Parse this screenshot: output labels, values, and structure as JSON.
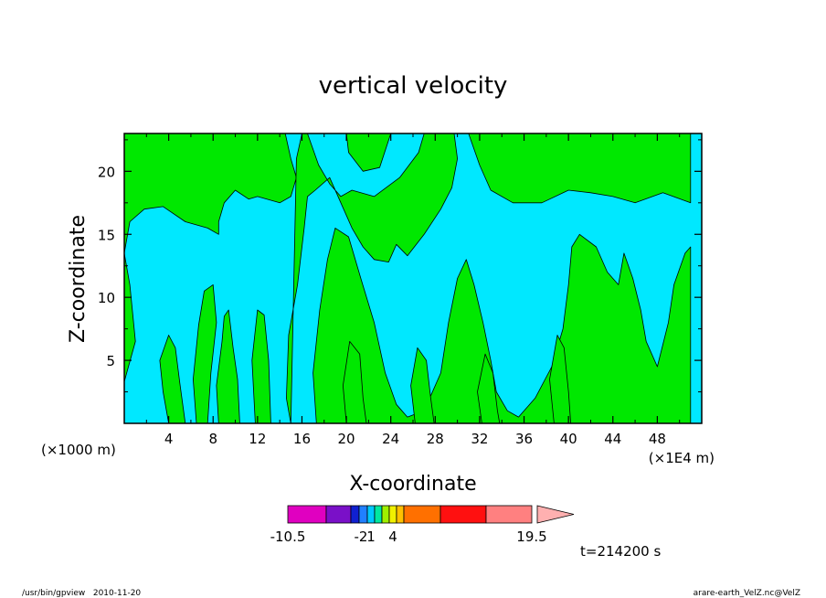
{
  "chart_data": {
    "type": "heatmap",
    "title": "vertical velocity",
    "xlabel": "X-coordinate",
    "ylabel": "Z-coordinate",
    "x_unit": "(×1000 m)",
    "x_scale_note": "(×1E4 m)",
    "xlim": [
      0,
      52
    ],
    "ylim": [
      0,
      23
    ],
    "x_ticks": [
      4,
      8,
      12,
      16,
      20,
      24,
      28,
      32,
      36,
      40,
      44,
      48
    ],
    "y_ticks": [
      5,
      10,
      15,
      20
    ],
    "x_tick_labels": [
      "4",
      "8",
      "12",
      "16",
      "20",
      "24",
      "28",
      "32",
      "36",
      "40",
      "44",
      "48"
    ],
    "y_tick_labels": [
      "5",
      "10",
      "15",
      "20"
    ],
    "background_color": "#00e8ff",
    "positive_color": "#00e800",
    "regions": [
      {
        "polygon": [
          [
            0,
            0
          ],
          [
            0,
            3.3
          ],
          [
            1,
            6.5
          ],
          [
            0.5,
            11
          ],
          [
            0,
            13.5
          ],
          [
            0.5,
            16
          ],
          [
            1.8,
            17
          ],
          [
            3.5,
            17.2
          ],
          [
            5.5,
            16
          ],
          [
            7.5,
            15.5
          ],
          [
            8.5,
            15
          ],
          [
            8.5,
            16
          ],
          [
            9,
            17.5
          ],
          [
            10,
            18.5
          ],
          [
            11.2,
            17.8
          ],
          [
            12,
            18
          ],
          [
            14,
            17.5
          ],
          [
            15,
            18
          ],
          [
            15.5,
            19.5
          ],
          [
            15,
            21
          ],
          [
            14.5,
            23
          ],
          [
            0,
            23
          ]
        ]
      },
      {
        "polygon": [
          [
            4,
            0
          ],
          [
            3.5,
            2.5
          ],
          [
            3.2,
            5
          ],
          [
            4,
            7
          ],
          [
            4.6,
            6
          ],
          [
            5,
            3.2
          ],
          [
            5.5,
            0
          ]
        ]
      },
      {
        "polygon": [
          [
            6.5,
            0
          ],
          [
            6.2,
            3.5
          ],
          [
            6.7,
            7.8
          ],
          [
            7.2,
            10.5
          ],
          [
            8,
            11
          ],
          [
            8.3,
            8
          ],
          [
            7.8,
            4
          ],
          [
            7.5,
            0
          ]
        ]
      },
      {
        "polygon": [
          [
            8.5,
            0
          ],
          [
            8.3,
            3
          ],
          [
            8.8,
            6.5
          ],
          [
            9,
            8.5
          ],
          [
            9.4,
            9
          ],
          [
            9.8,
            6
          ],
          [
            10.2,
            3.5
          ],
          [
            10.4,
            0
          ]
        ]
      },
      {
        "polygon": [
          [
            11.8,
            0
          ],
          [
            11.5,
            5
          ],
          [
            12,
            9
          ],
          [
            12.6,
            8.6
          ],
          [
            13,
            5
          ],
          [
            13.2,
            0
          ]
        ]
      },
      {
        "polygon": [
          [
            15,
            0
          ],
          [
            14.6,
            2
          ],
          [
            14.8,
            7
          ],
          [
            15.6,
            11
          ],
          [
            16.2,
            15.5
          ],
          [
            16.5,
            18
          ],
          [
            17.2,
            18.5
          ],
          [
            18.5,
            19.5
          ],
          [
            19.5,
            17.5
          ],
          [
            20.5,
            15.5
          ],
          [
            21.5,
            14
          ],
          [
            22.5,
            13
          ],
          [
            23.8,
            12.8
          ],
          [
            24.5,
            14.2
          ],
          [
            25.5,
            13.3
          ],
          [
            27,
            15
          ],
          [
            28.5,
            17
          ],
          [
            29.5,
            18.7
          ],
          [
            30,
            21
          ],
          [
            29.7,
            23
          ],
          [
            51,
            23
          ],
          [
            51,
            17.5
          ],
          [
            48.5,
            18.3
          ],
          [
            46,
            17.5
          ],
          [
            44,
            18
          ],
          [
            42,
            18.3
          ],
          [
            40,
            18.5
          ],
          [
            37.6,
            17.5
          ],
          [
            35,
            17.5
          ],
          [
            33,
            18.5
          ],
          [
            32,
            20.5
          ],
          [
            31,
            23
          ],
          [
            27,
            23
          ],
          [
            26.5,
            21.5
          ],
          [
            24.8,
            19.5
          ],
          [
            22.5,
            18
          ],
          [
            20.5,
            18.5
          ],
          [
            19.5,
            18
          ],
          [
            18.5,
            19
          ],
          [
            17.5,
            20.5
          ],
          [
            16.5,
            23
          ],
          [
            20,
            23
          ],
          [
            20.2,
            21.5
          ],
          [
            21.5,
            20
          ],
          [
            23,
            20.3
          ],
          [
            24,
            23
          ],
          [
            16,
            23
          ],
          [
            15.5,
            21
          ]
        ]
      },
      {
        "polygon": [
          [
            17.3,
            0
          ],
          [
            17,
            4
          ],
          [
            17.6,
            9
          ],
          [
            18.3,
            13
          ],
          [
            19,
            15.5
          ],
          [
            20.2,
            14.8
          ],
          [
            21.3,
            11.5
          ],
          [
            22.5,
            8
          ],
          [
            23.5,
            4
          ],
          [
            24.5,
            1.5
          ],
          [
            25.5,
            0.5
          ],
          [
            27,
            1
          ],
          [
            28.5,
            4
          ],
          [
            29.2,
            8
          ],
          [
            30,
            11.5
          ],
          [
            30.8,
            13
          ],
          [
            31.5,
            11
          ],
          [
            32.3,
            8
          ],
          [
            33,
            5
          ],
          [
            33.5,
            2.5
          ],
          [
            34.5,
            1
          ],
          [
            35.5,
            0.5
          ],
          [
            37,
            2
          ],
          [
            38.5,
            4.5
          ],
          [
            39.5,
            7.5
          ],
          [
            40,
            11
          ],
          [
            40.3,
            14
          ],
          [
            41,
            15
          ],
          [
            42.5,
            14
          ],
          [
            43.5,
            12
          ],
          [
            44.5,
            11
          ],
          [
            45,
            13.5
          ],
          [
            45.8,
            11.5
          ],
          [
            46.5,
            9
          ],
          [
            47,
            6.5
          ],
          [
            48,
            4.5
          ],
          [
            49,
            8
          ],
          [
            49.5,
            11
          ],
          [
            50.5,
            13.5
          ],
          [
            51,
            14
          ],
          [
            51,
            0
          ]
        ]
      },
      {
        "polygon": [
          [
            20,
            0
          ],
          [
            19.7,
            3
          ],
          [
            20.3,
            6.5
          ],
          [
            21.2,
            5.5
          ],
          [
            21.5,
            2
          ],
          [
            21.8,
            0
          ]
        ]
      },
      {
        "polygon": [
          [
            26.2,
            0
          ],
          [
            25.8,
            3
          ],
          [
            26.4,
            6
          ],
          [
            27.2,
            5
          ],
          [
            27.6,
            2
          ],
          [
            27.9,
            0
          ]
        ]
      },
      {
        "polygon": [
          [
            32.2,
            0
          ],
          [
            31.8,
            2.5
          ],
          [
            32.5,
            5.5
          ],
          [
            33.2,
            4
          ],
          [
            33.6,
            1
          ],
          [
            33.8,
            0
          ]
        ]
      },
      {
        "polygon": [
          [
            38.7,
            0
          ],
          [
            38.3,
            3.5
          ],
          [
            39,
            7
          ],
          [
            39.6,
            6
          ],
          [
            40,
            2.5
          ],
          [
            40.2,
            0
          ]
        ]
      }
    ],
    "colorbar": {
      "colors": [
        "#e000c0",
        "#7a10c8",
        "#1020d0",
        "#2080ff",
        "#00c8ff",
        "#00e8a0",
        "#a0f000",
        "#f0f000",
        "#ffc000",
        "#ff7000",
        "#ff1010",
        "#ff8080",
        "#ffb0b0"
      ],
      "labels": [
        "-10.5",
        "-2",
        "1",
        "4",
        "19.5"
      ]
    },
    "time_label": "t=214200 s"
  },
  "footer": {
    "left": "/usr/bin/gpview   2010-11-20",
    "right": "arare-earth_VelZ.nc@VelZ"
  }
}
